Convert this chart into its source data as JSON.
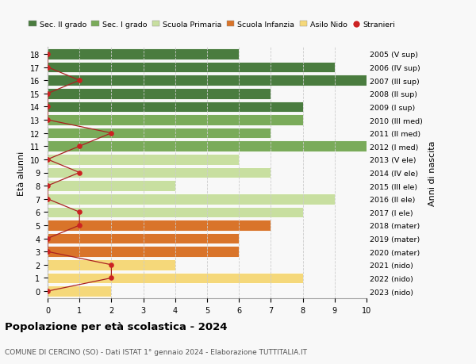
{
  "ages": [
    18,
    17,
    16,
    15,
    14,
    13,
    12,
    11,
    10,
    9,
    8,
    7,
    6,
    5,
    4,
    3,
    2,
    1,
    0
  ],
  "years": [
    "2005 (V sup)",
    "2006 (IV sup)",
    "2007 (III sup)",
    "2008 (II sup)",
    "2009 (I sup)",
    "2010 (III med)",
    "2011 (II med)",
    "2012 (I med)",
    "2013 (V ele)",
    "2014 (IV ele)",
    "2015 (III ele)",
    "2016 (II ele)",
    "2017 (I ele)",
    "2018 (mater)",
    "2019 (mater)",
    "2020 (mater)",
    "2021 (nido)",
    "2022 (nido)",
    "2023 (nido)"
  ],
  "bar_values": [
    6,
    9,
    10,
    7,
    8,
    8,
    7,
    10,
    6,
    7,
    4,
    9,
    8,
    7,
    6,
    6,
    4,
    8,
    2
  ],
  "bar_colors": [
    "#4a7c3f",
    "#4a7c3f",
    "#4a7c3f",
    "#4a7c3f",
    "#4a7c3f",
    "#7aab5a",
    "#7aab5a",
    "#7aab5a",
    "#c8dfa0",
    "#c8dfa0",
    "#c8dfa0",
    "#c8dfa0",
    "#c8dfa0",
    "#d9742a",
    "#d9742a",
    "#d9742a",
    "#f5d87a",
    "#f5d87a",
    "#f5d87a"
  ],
  "stranieri_x": [
    0,
    0,
    1,
    0,
    0,
    0,
    2,
    1,
    0,
    1,
    0,
    0,
    1,
    1,
    0,
    0,
    2,
    2,
    0
  ],
  "title": "Popolazione per età scolastica - 2024",
  "subtitle": "COMUNE DI CERCINO (SO) - Dati ISTAT 1° gennaio 2024 - Elaborazione TUTTITALIA.IT",
  "ylabel_left": "Età alunni",
  "ylabel_right": "Anni di nascita",
  "legend_labels": [
    "Sec. II grado",
    "Sec. I grado",
    "Scuola Primaria",
    "Scuola Infanzia",
    "Asilo Nido",
    "Stranieri"
  ],
  "legend_colors": [
    "#4a7c3f",
    "#7aab5a",
    "#c8dfa0",
    "#d9742a",
    "#f5d87a",
    "#cc2222"
  ],
  "xlim": [
    0,
    10
  ],
  "xticks": [
    0,
    1,
    2,
    3,
    4,
    5,
    6,
    7,
    8,
    9,
    10
  ],
  "bar_height": 0.82,
  "stranieri_color": "#cc2222",
  "line_color": "#aa2222",
  "grid_color": "#cccccc",
  "bg_color": "#f8f8f8",
  "figsize": [
    6.0,
    4.6
  ],
  "dpi": 100
}
